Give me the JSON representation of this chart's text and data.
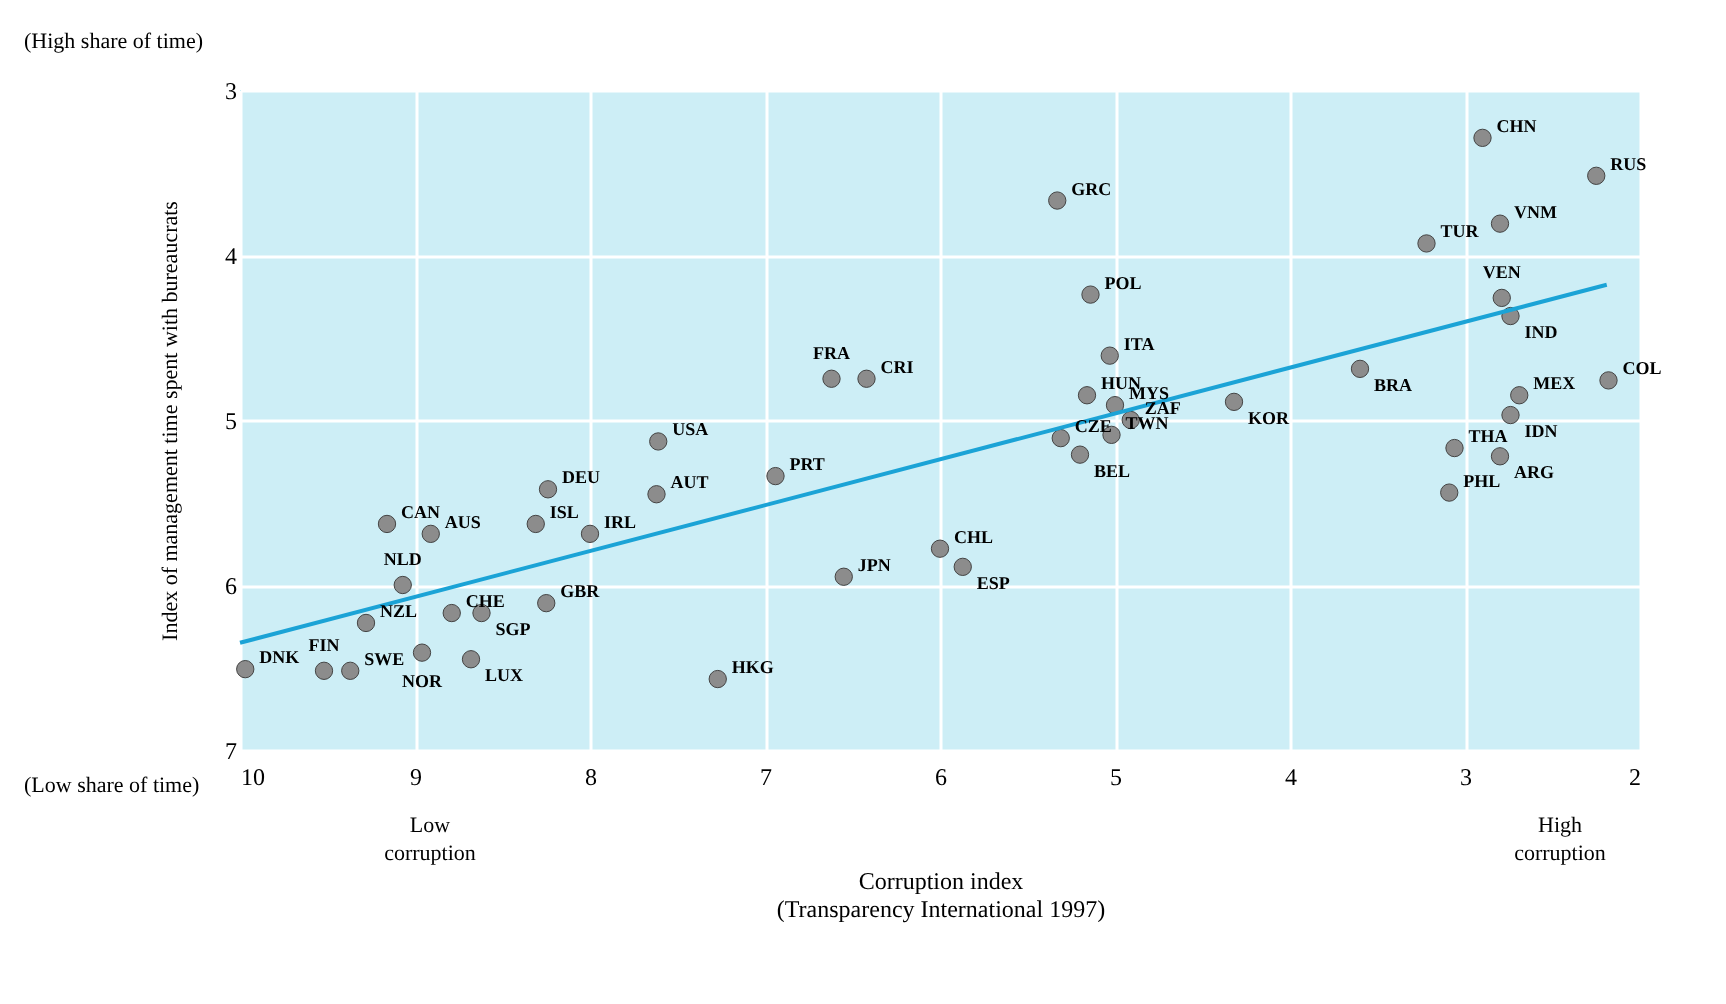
{
  "chart_data": {
    "type": "scatter",
    "xlabel": "Corruption index\n(Transparency International 1997)",
    "ylabel": "Index of management time spent with bureaucrats",
    "xlim": [
      10,
      2
    ],
    "ylim": [
      7,
      3
    ],
    "xticks": [
      10,
      9,
      8,
      7,
      6,
      5,
      4,
      3,
      2
    ],
    "yticks": [
      3,
      4,
      5,
      6,
      7
    ],
    "grid": true,
    "marker": "circle",
    "series": [
      {
        "color": "#8c8c8c",
        "x": [
          9.97,
          9.52,
          9.37,
          9.28,
          9.07,
          9.16,
          8.91,
          8.79,
          8.62,
          8.96,
          8.68,
          8.31,
          8.24,
          8.0,
          8.25,
          7.61,
          7.62,
          6.94,
          6.55,
          7.27,
          6.62,
          6.42,
          6.0,
          5.87,
          5.33,
          5.14,
          5.03,
          5.16,
          5.0,
          5.31,
          5.2,
          5.02,
          4.91,
          4.32,
          3.6,
          3.22,
          2.9,
          2.8,
          2.25,
          2.79,
          2.74,
          2.18,
          2.69,
          2.74,
          3.06,
          2.8,
          3.09
        ],
        "values": [
          6.51,
          6.52,
          6.52,
          6.23,
          6.0,
          5.63,
          5.69,
          6.17,
          6.17,
          6.41,
          6.45,
          5.63,
          5.42,
          5.69,
          6.11,
          5.13,
          5.45,
          5.34,
          5.95,
          6.57,
          4.75,
          4.75,
          5.78,
          5.89,
          3.67,
          4.24,
          4.61,
          4.85,
          4.91,
          5.11,
          5.21,
          5.09,
          5.0,
          4.89,
          4.69,
          3.93,
          3.29,
          3.81,
          3.52,
          4.26,
          4.37,
          4.76,
          4.85,
          4.97,
          5.17,
          5.22,
          5.44
        ]
      },
      {
        "type": "line",
        "color": "#1ba3d6",
        "marker": "none",
        "line_style": "solid",
        "x": [
          10,
          2.19
        ],
        "values": [
          6.35,
          4.18
        ]
      }
    ],
    "annotations": [
      {
        "text": "DNK",
        "x": 9.97,
        "y": 6.51
      },
      {
        "text": "FIN",
        "x": 9.52,
        "y": 6.52
      },
      {
        "text": "SWE",
        "x": 9.37,
        "y": 6.52
      },
      {
        "text": "NZL",
        "x": 9.28,
        "y": 6.23
      },
      {
        "text": "NLD",
        "x": 9.07,
        "y": 6.0
      },
      {
        "text": "CAN",
        "x": 9.16,
        "y": 5.63
      },
      {
        "text": "AUS",
        "x": 8.91,
        "y": 5.69
      },
      {
        "text": "CHE",
        "x": 8.79,
        "y": 6.17
      },
      {
        "text": "SGP",
        "x": 8.62,
        "y": 6.17
      },
      {
        "text": "NOR",
        "x": 8.96,
        "y": 6.41
      },
      {
        "text": "LUX",
        "x": 8.68,
        "y": 6.45
      },
      {
        "text": "ISL",
        "x": 8.31,
        "y": 5.63
      },
      {
        "text": "DEU",
        "x": 8.24,
        "y": 5.42
      },
      {
        "text": "IRL",
        "x": 8.0,
        "y": 5.69
      },
      {
        "text": "GBR",
        "x": 8.25,
        "y": 6.11
      },
      {
        "text": "USA",
        "x": 7.61,
        "y": 5.13
      },
      {
        "text": "AUT",
        "x": 7.62,
        "y": 5.45
      },
      {
        "text": "PRT",
        "x": 6.94,
        "y": 5.34
      },
      {
        "text": "JPN",
        "x": 6.55,
        "y": 5.95
      },
      {
        "text": "HKG",
        "x": 7.27,
        "y": 6.57
      },
      {
        "text": "FRA",
        "x": 6.62,
        "y": 4.75
      },
      {
        "text": "CRI",
        "x": 6.42,
        "y": 4.75
      },
      {
        "text": "CHL",
        "x": 6.0,
        "y": 5.78
      },
      {
        "text": "ESP",
        "x": 5.87,
        "y": 5.89
      },
      {
        "text": "GRC",
        "x": 5.33,
        "y": 3.67
      },
      {
        "text": "POL",
        "x": 5.14,
        "y": 4.24
      },
      {
        "text": "ITA",
        "x": 5.03,
        "y": 4.61
      },
      {
        "text": "HUN",
        "x": 5.16,
        "y": 4.85
      },
      {
        "text": "MYS",
        "x": 5.0,
        "y": 4.91
      },
      {
        "text": "CZE",
        "x": 5.31,
        "y": 5.11
      },
      {
        "text": "BEL",
        "x": 5.2,
        "y": 5.21
      },
      {
        "text": "TWN",
        "x": 5.02,
        "y": 5.09
      },
      {
        "text": "ZAF",
        "x": 4.91,
        "y": 5.0
      },
      {
        "text": "KOR",
        "x": 4.32,
        "y": 4.89
      },
      {
        "text": "BRA",
        "x": 3.6,
        "y": 4.69
      },
      {
        "text": "TUR",
        "x": 3.22,
        "y": 3.93
      },
      {
        "text": "CHN",
        "x": 2.9,
        "y": 3.29
      },
      {
        "text": "VNM",
        "x": 2.8,
        "y": 3.81
      },
      {
        "text": "RUS",
        "x": 2.25,
        "y": 3.52
      },
      {
        "text": "VEN",
        "x": 2.79,
        "y": 4.26
      },
      {
        "text": "IND",
        "x": 2.74,
        "y": 4.37
      },
      {
        "text": "COL",
        "x": 2.18,
        "y": 4.76
      },
      {
        "text": "MEX",
        "x": 2.69,
        "y": 4.85
      },
      {
        "text": "IDN",
        "x": 2.74,
        "y": 4.97
      },
      {
        "text": "THA",
        "x": 3.06,
        "y": 5.17
      },
      {
        "text": "ARG",
        "x": 2.8,
        "y": 5.22
      },
      {
        "text": "PHL",
        "x": 3.09,
        "y": 5.44
      },
      "(High share of time)",
      "(Low share of time)",
      "Low\ncorruption",
      "High\ncorruption"
    ]
  }
}
